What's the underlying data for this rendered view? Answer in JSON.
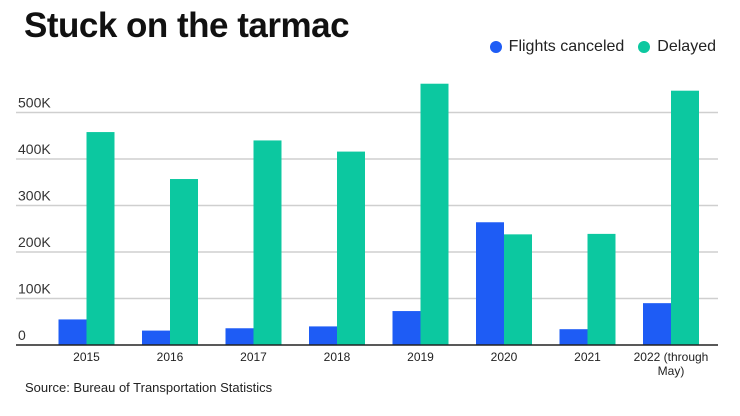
{
  "chart_data": {
    "type": "bar",
    "title": "Stuck on the tarmac",
    "categories": [
      "2015",
      "2016",
      "2017",
      "2018",
      "2019",
      "2020",
      "2021",
      "2022 (through May)"
    ],
    "series": [
      {
        "name": "Flights canceled",
        "color": "#1e5cf5",
        "values": [
          55000,
          31000,
          36000,
          40000,
          73000,
          264000,
          34000,
          90000
        ]
      },
      {
        "name": "Delayed",
        "color": "#0cc8a0",
        "values": [
          458000,
          357000,
          440000,
          416000,
          562000,
          238000,
          239000,
          547000
        ]
      }
    ],
    "yticks": [
      0,
      100000,
      200000,
      300000,
      400000,
      500000
    ],
    "ytick_labels": [
      "0",
      "100K",
      "200K",
      "300K",
      "400K",
      "500K"
    ],
    "ylim": [
      0,
      570000
    ],
    "xlabel": "",
    "ylabel": "",
    "legend": "top-right",
    "grid": true
  },
  "source": "Source: Bureau of Transportation Statistics"
}
